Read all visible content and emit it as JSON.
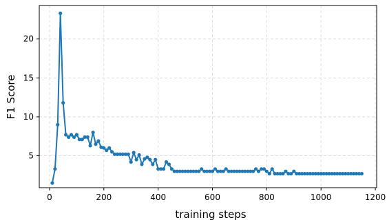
{
  "chart_data": {
    "type": "line",
    "xlabel": "training steps",
    "ylabel": "F1 Score",
    "xlim": [
      -38,
      1205
    ],
    "ylim": [
      0.9,
      24.3
    ],
    "grid": true,
    "colors": {
      "series": "#1f77b4",
      "grid": "#d9d9d9",
      "axis": "#000000"
    },
    "xticks": [
      0,
      200,
      400,
      600,
      800,
      1000,
      1200
    ],
    "yticks": [
      5,
      10,
      15,
      20
    ],
    "series": [
      {
        "x": [
          10,
          20,
          30,
          40,
          50,
          60,
          70,
          80,
          90,
          100,
          110,
          120,
          130,
          140,
          150,
          160,
          170,
          180,
          190,
          200,
          210,
          220,
          230,
          240,
          250,
          260,
          270,
          280,
          290,
          300,
          310,
          320,
          330,
          340,
          350,
          360,
          370,
          380,
          390,
          400,
          410,
          420,
          430,
          440,
          450,
          460,
          470,
          480,
          490,
          500,
          510,
          520,
          530,
          540,
          550,
          560,
          570,
          580,
          590,
          600,
          610,
          620,
          630,
          640,
          650,
          660,
          670,
          680,
          690,
          700,
          710,
          720,
          730,
          740,
          750,
          760,
          770,
          780,
          790,
          800,
          810,
          820,
          830,
          840,
          850,
          860,
          870,
          880,
          890,
          900,
          910,
          920,
          930,
          940,
          950,
          960,
          970,
          980,
          990,
          1000,
          1010,
          1020,
          1030,
          1040,
          1050,
          1060,
          1070,
          1080,
          1090,
          1100,
          1110,
          1120,
          1130,
          1140,
          1150
        ],
        "y": [
          1.5,
          3.3,
          9.0,
          23.3,
          11.8,
          7.7,
          7.4,
          7.7,
          7.4,
          7.7,
          7.1,
          7.1,
          7.4,
          7.4,
          6.3,
          8.0,
          6.5,
          6.9,
          6.1,
          6.0,
          5.7,
          6.0,
          5.5,
          5.2,
          5.2,
          5.2,
          5.2,
          5.2,
          5.2,
          4.2,
          5.4,
          4.5,
          5.1,
          3.9,
          4.6,
          4.8,
          4.5,
          3.9,
          4.5,
          3.3,
          3.3,
          3.3,
          4.2,
          3.9,
          3.3,
          3.0,
          3.0,
          3.0,
          3.0,
          3.0,
          3.0,
          3.0,
          3.0,
          3.0,
          3.0,
          3.3,
          3.0,
          3.0,
          3.0,
          3.0,
          3.3,
          3.0,
          3.0,
          3.0,
          3.3,
          3.0,
          3.0,
          3.0,
          3.0,
          3.0,
          3.0,
          3.0,
          3.0,
          3.0,
          3.0,
          3.3,
          3.0,
          3.3,
          3.3,
          3.0,
          2.7,
          3.3,
          2.7,
          2.7,
          2.7,
          2.7,
          3.0,
          2.7,
          2.7,
          3.0,
          2.7,
          2.7,
          2.7,
          2.7,
          2.7,
          2.7,
          2.7,
          2.7,
          2.7,
          2.7,
          2.7,
          2.7,
          2.7,
          2.7,
          2.7,
          2.7,
          2.7,
          2.7,
          2.7,
          2.7,
          2.7,
          2.7,
          2.7,
          2.7,
          2.7
        ]
      }
    ]
  }
}
